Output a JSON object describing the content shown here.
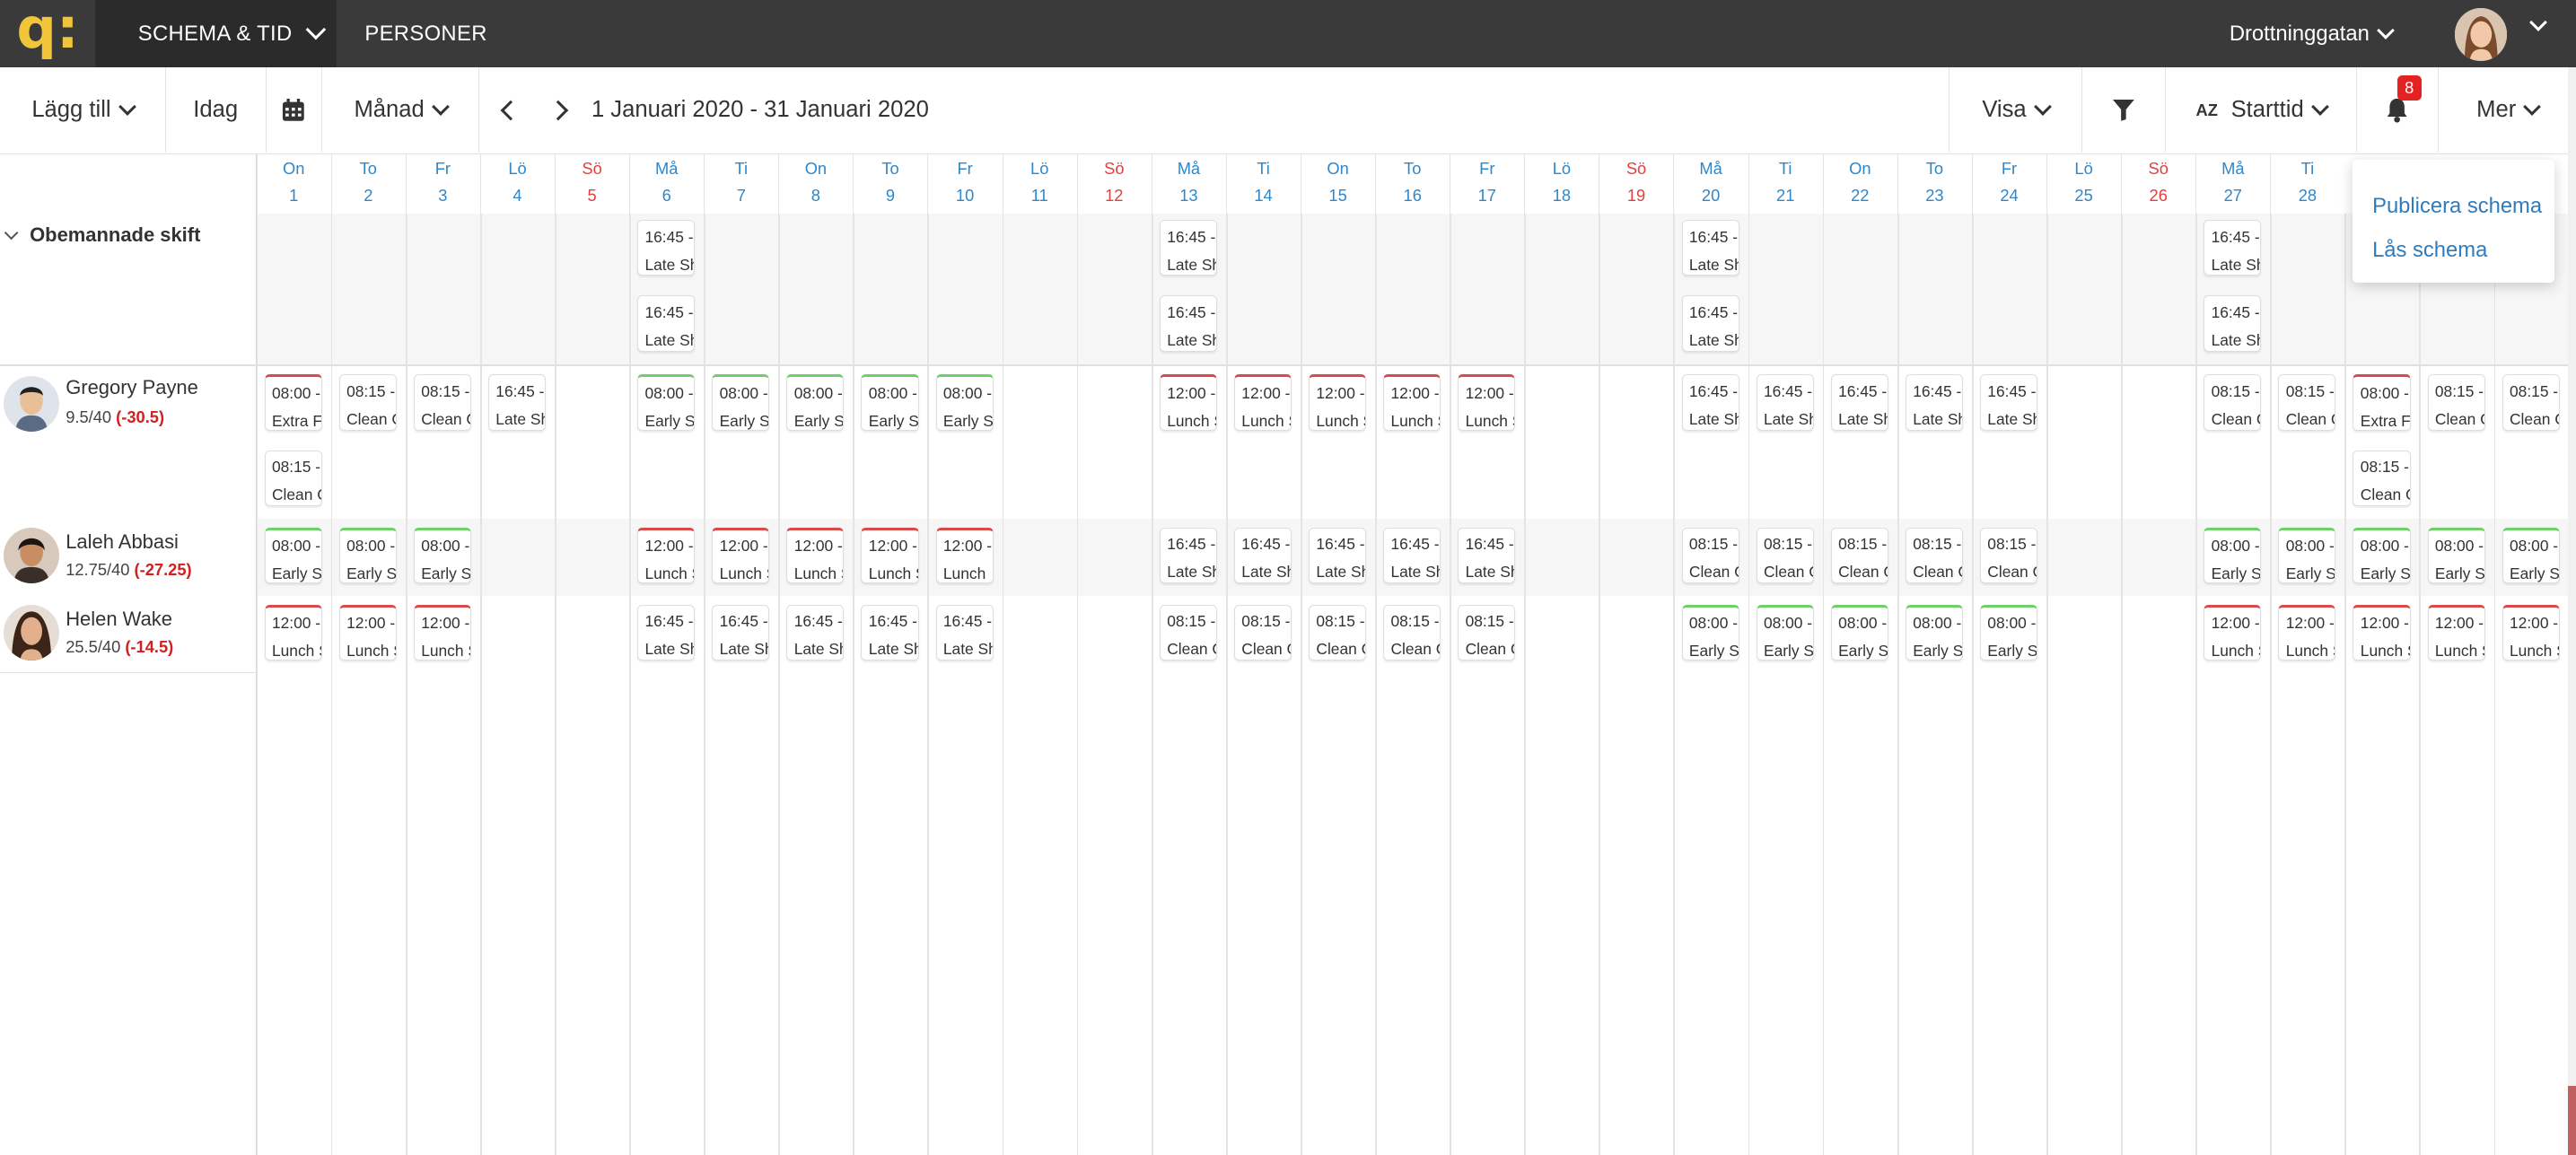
{
  "topnav": {
    "schema_label": "SCHEMA & TID",
    "personer_label": "PERSONER",
    "location": "Drottninggatan"
  },
  "toolbar": {
    "add_label": "Lägg till",
    "today_label": "Idag",
    "view_label": "Månad",
    "range_label": "1 Januari 2020 - 31 Januari 2020",
    "visa_label": "Visa",
    "sort_label": "Starttid",
    "sort_icon_text": "AZ",
    "notifications_count": "8",
    "more_label": "Mer"
  },
  "more_menu": {
    "items": [
      "Publicera schema",
      "Lås schema"
    ]
  },
  "days": [
    {
      "name": "On",
      "num": "1"
    },
    {
      "name": "To",
      "num": "2"
    },
    {
      "name": "Fr",
      "num": "3"
    },
    {
      "name": "Lö",
      "num": "4"
    },
    {
      "name": "Sö",
      "num": "5"
    },
    {
      "name": "Må",
      "num": "6"
    },
    {
      "name": "Ti",
      "num": "7"
    },
    {
      "name": "On",
      "num": "8"
    },
    {
      "name": "To",
      "num": "9"
    },
    {
      "name": "Fr",
      "num": "10"
    },
    {
      "name": "Lö",
      "num": "11"
    },
    {
      "name": "Sö",
      "num": "12"
    },
    {
      "name": "Må",
      "num": "13"
    },
    {
      "name": "Ti",
      "num": "14"
    },
    {
      "name": "On",
      "num": "15"
    },
    {
      "name": "To",
      "num": "16"
    },
    {
      "name": "Fr",
      "num": "17"
    },
    {
      "name": "Lö",
      "num": "18"
    },
    {
      "name": "Sö",
      "num": "19"
    },
    {
      "name": "Må",
      "num": "20"
    },
    {
      "name": "Ti",
      "num": "21"
    },
    {
      "name": "On",
      "num": "22"
    },
    {
      "name": "To",
      "num": "23"
    },
    {
      "name": "Fr",
      "num": "24"
    },
    {
      "name": "Lö",
      "num": "25"
    },
    {
      "name": "Sö",
      "num": "26"
    },
    {
      "name": "Må",
      "num": "27"
    },
    {
      "name": "Ti",
      "num": "28"
    }
  ],
  "unassigned": {
    "label": "Obemannade skift",
    "shifts": [
      {
        "day": 6,
        "slot": 0,
        "time": "16:45 -",
        "title": "Late Sh"
      },
      {
        "day": 6,
        "slot": 1,
        "time": "16:45 -",
        "title": "Late Sh"
      },
      {
        "day": 13,
        "slot": 0,
        "time": "16:45 -",
        "title": "Late Sh"
      },
      {
        "day": 13,
        "slot": 1,
        "time": "16:45 -",
        "title": "Late Sh"
      },
      {
        "day": 20,
        "slot": 0,
        "time": "16:45 -",
        "title": "Late Sh"
      },
      {
        "day": 20,
        "slot": 1,
        "time": "16:45 -",
        "title": "Late Sh"
      },
      {
        "day": 27,
        "slot": 0,
        "time": "16:45 -",
        "title": "Late Sh"
      },
      {
        "day": 27,
        "slot": 1,
        "time": "16:45 -",
        "title": "Late Sh"
      }
    ]
  },
  "people": [
    {
      "name": "Gregory Payne",
      "hours": "9.5/40",
      "diff": "(-30.5)",
      "shifts": [
        {
          "day": 1,
          "slot": 0,
          "time": "08:00 -",
          "title": "Extra Fr",
          "color": "red"
        },
        {
          "day": 1,
          "slot": 1,
          "time": "08:15 -",
          "title": "Clean C",
          "color": "none"
        },
        {
          "day": 2,
          "slot": 0,
          "time": "08:15 -",
          "title": "Clean C",
          "color": "none"
        },
        {
          "day": 3,
          "slot": 0,
          "time": "08:15 -",
          "title": "Clean C",
          "color": "none"
        },
        {
          "day": 4,
          "slot": 0,
          "time": "16:45 -",
          "title": "Late Sh",
          "color": "none"
        },
        {
          "day": 6,
          "slot": 0,
          "time": "08:00 -",
          "title": "Early S",
          "color": "green"
        },
        {
          "day": 7,
          "slot": 0,
          "time": "08:00 -",
          "title": "Early Sh",
          "color": "green"
        },
        {
          "day": 8,
          "slot": 0,
          "time": "08:00 -",
          "title": "Early S",
          "color": "green"
        },
        {
          "day": 9,
          "slot": 0,
          "time": "08:00 -",
          "title": "Early Sh",
          "color": "green"
        },
        {
          "day": 10,
          "slot": 0,
          "time": "08:00 -",
          "title": "Early S",
          "color": "green"
        },
        {
          "day": 13,
          "slot": 0,
          "time": "12:00 -",
          "title": "Lunch S",
          "color": "red"
        },
        {
          "day": 14,
          "slot": 0,
          "time": "12:00 -",
          "title": "Lunch S",
          "color": "red"
        },
        {
          "day": 15,
          "slot": 0,
          "time": "12:00 -",
          "title": "Lunch S",
          "color": "red"
        },
        {
          "day": 16,
          "slot": 0,
          "time": "12:00 -",
          "title": "Lunch S",
          "color": "red"
        },
        {
          "day": 17,
          "slot": 0,
          "time": "12:00 -",
          "title": "Lunch S",
          "color": "red"
        },
        {
          "day": 20,
          "slot": 0,
          "time": "16:45 -",
          "title": "Late Sh",
          "color": "none"
        },
        {
          "day": 21,
          "slot": 0,
          "time": "16:45 -",
          "title": "Late Sh",
          "color": "none"
        },
        {
          "day": 22,
          "slot": 0,
          "time": "16:45 -",
          "title": "Late Sh",
          "color": "none"
        },
        {
          "day": 23,
          "slot": 0,
          "time": "16:45 -",
          "title": "Late Sh",
          "color": "none"
        },
        {
          "day": 24,
          "slot": 0,
          "time": "16:45 -",
          "title": "Late Sh",
          "color": "none"
        },
        {
          "day": 27,
          "slot": 0,
          "time": "08:15 -",
          "title": "Clean C",
          "color": "none"
        },
        {
          "day": 28,
          "slot": 0,
          "time": "08:15 -",
          "title": "Clean C",
          "color": "none"
        },
        {
          "day": 29,
          "slot": 0,
          "time": "08:00 -",
          "title": "Extra Fr",
          "color": "red"
        },
        {
          "day": 29,
          "slot": 1,
          "time": "08:15 -",
          "title": "Clean C",
          "color": "none"
        },
        {
          "day": 30,
          "slot": 0,
          "time": "08:15 -",
          "title": "Clean C",
          "color": "none"
        },
        {
          "day": 31,
          "slot": 0,
          "time": "08:15 -",
          "title": "Clean C",
          "color": "none"
        }
      ]
    },
    {
      "name": "Laleh Abbasi",
      "hours": "12.75/40",
      "diff": "(-27.25)",
      "shifts": [
        {
          "day": 1,
          "slot": 0,
          "time": "08:00 -",
          "title": "Early S",
          "color": "green"
        },
        {
          "day": 2,
          "slot": 0,
          "time": "08:00 -",
          "title": "Early S",
          "color": "green"
        },
        {
          "day": 3,
          "slot": 0,
          "time": "08:00 -",
          "title": "Early S",
          "color": "green"
        },
        {
          "day": 6,
          "slot": 0,
          "time": "12:00 -",
          "title": "Lunch S",
          "color": "red"
        },
        {
          "day": 7,
          "slot": 0,
          "time": "12:00 -",
          "title": "Lunch S",
          "color": "red"
        },
        {
          "day": 8,
          "slot": 0,
          "time": "12:00 -",
          "title": "Lunch S",
          "color": "red"
        },
        {
          "day": 9,
          "slot": 0,
          "time": "12:00 -",
          "title": "Lunch S",
          "color": "red"
        },
        {
          "day": 10,
          "slot": 0,
          "time": "12:00 -",
          "title": "Lunch",
          "color": "red"
        },
        {
          "day": 13,
          "slot": 0,
          "time": "16:45 -",
          "title": "Late Sh",
          "color": "none"
        },
        {
          "day": 14,
          "slot": 0,
          "time": "16:45 -",
          "title": "Late Sh",
          "color": "none"
        },
        {
          "day": 15,
          "slot": 0,
          "time": "16:45 -",
          "title": "Late Sh",
          "color": "none"
        },
        {
          "day": 16,
          "slot": 0,
          "time": "16:45 -",
          "title": "Late Sh",
          "color": "none"
        },
        {
          "day": 17,
          "slot": 0,
          "time": "16:45 -",
          "title": "Late Sh",
          "color": "none"
        },
        {
          "day": 20,
          "slot": 0,
          "time": "08:15 -",
          "title": "Clean C",
          "color": "none"
        },
        {
          "day": 21,
          "slot": 0,
          "time": "08:15 -",
          "title": "Clean C",
          "color": "none"
        },
        {
          "day": 22,
          "slot": 0,
          "time": "08:15 -",
          "title": "Clean C",
          "color": "none"
        },
        {
          "day": 23,
          "slot": 0,
          "time": "08:15 -",
          "title": "Clean C",
          "color": "none"
        },
        {
          "day": 24,
          "slot": 0,
          "time": "08:15 -",
          "title": "Clean C",
          "color": "none"
        },
        {
          "day": 27,
          "slot": 0,
          "time": "08:00 -",
          "title": "Early S",
          "color": "green"
        },
        {
          "day": 28,
          "slot": 0,
          "time": "08:00 -",
          "title": "Early Sh",
          "color": "green"
        },
        {
          "day": 29,
          "slot": 0,
          "time": "08:00 -",
          "title": "Early S",
          "color": "green"
        },
        {
          "day": 30,
          "slot": 0,
          "time": "08:00 -",
          "title": "Early S",
          "color": "green"
        },
        {
          "day": 31,
          "slot": 0,
          "time": "08:00 -",
          "title": "Early Sh",
          "color": "green"
        }
      ]
    },
    {
      "name": "Helen Wake",
      "hours": "25.5/40",
      "diff": "(-14.5)",
      "shifts": [
        {
          "day": 1,
          "slot": 0,
          "time": "12:00 -",
          "title": "Lunch S",
          "color": "red"
        },
        {
          "day": 2,
          "slot": 0,
          "time": "12:00 -",
          "title": "Lunch S",
          "color": "red"
        },
        {
          "day": 3,
          "slot": 0,
          "time": "12:00 -",
          "title": "Lunch S",
          "color": "red"
        },
        {
          "day": 6,
          "slot": 0,
          "time": "16:45 -",
          "title": "Late Sh",
          "color": "none"
        },
        {
          "day": 7,
          "slot": 0,
          "time": "16:45 -",
          "title": "Late Sh",
          "color": "none"
        },
        {
          "day": 8,
          "slot": 0,
          "time": "16:45 -",
          "title": "Late Sh",
          "color": "none"
        },
        {
          "day": 9,
          "slot": 0,
          "time": "16:45 -",
          "title": "Late Sh",
          "color": "none"
        },
        {
          "day": 10,
          "slot": 0,
          "time": "16:45 -",
          "title": "Late Sh",
          "color": "none"
        },
        {
          "day": 13,
          "slot": 0,
          "time": "08:15 -",
          "title": "Clean C",
          "color": "none"
        },
        {
          "day": 14,
          "slot": 0,
          "time": "08:15 -",
          "title": "Clean C",
          "color": "none"
        },
        {
          "day": 15,
          "slot": 0,
          "time": "08:15 -",
          "title": "Clean C",
          "color": "none"
        },
        {
          "day": 16,
          "slot": 0,
          "time": "08:15 -",
          "title": "Clean C",
          "color": "none"
        },
        {
          "day": 17,
          "slot": 0,
          "time": "08:15 -",
          "title": "Clean C",
          "color": "none"
        },
        {
          "day": 20,
          "slot": 0,
          "time": "08:00 -",
          "title": "Early S",
          "color": "green"
        },
        {
          "day": 21,
          "slot": 0,
          "time": "08:00 -",
          "title": "Early Sh",
          "color": "green"
        },
        {
          "day": 22,
          "slot": 0,
          "time": "08:00 -",
          "title": "Early S",
          "color": "green"
        },
        {
          "day": 23,
          "slot": 0,
          "time": "08:00 -",
          "title": "Early S",
          "color": "green"
        },
        {
          "day": 24,
          "slot": 0,
          "time": "08:00 -",
          "title": "Early Sh",
          "color": "green"
        },
        {
          "day": 27,
          "slot": 0,
          "time": "12:00 -",
          "title": "Lunch S",
          "color": "red"
        },
        {
          "day": 28,
          "slot": 0,
          "time": "12:00 -",
          "title": "Lunch S",
          "color": "red"
        },
        {
          "day": 29,
          "slot": 0,
          "time": "12:00 -",
          "title": "Lunch S",
          "color": "red"
        },
        {
          "day": 30,
          "slot": 0,
          "time": "12:00 -",
          "title": "Lunch S",
          "color": "red"
        },
        {
          "day": 31,
          "slot": 0,
          "time": "12:00 -",
          "title": "Lunch S",
          "color": "red"
        }
      ]
    }
  ],
  "colors": {
    "accent": "#2f87c9",
    "sunday": "#e0403e",
    "shift_green": "#6fd06a",
    "shift_red": "#d94a4a",
    "deficit": "#d02020",
    "logo": "#f0c53a",
    "topbar": "#3a3a3a"
  }
}
